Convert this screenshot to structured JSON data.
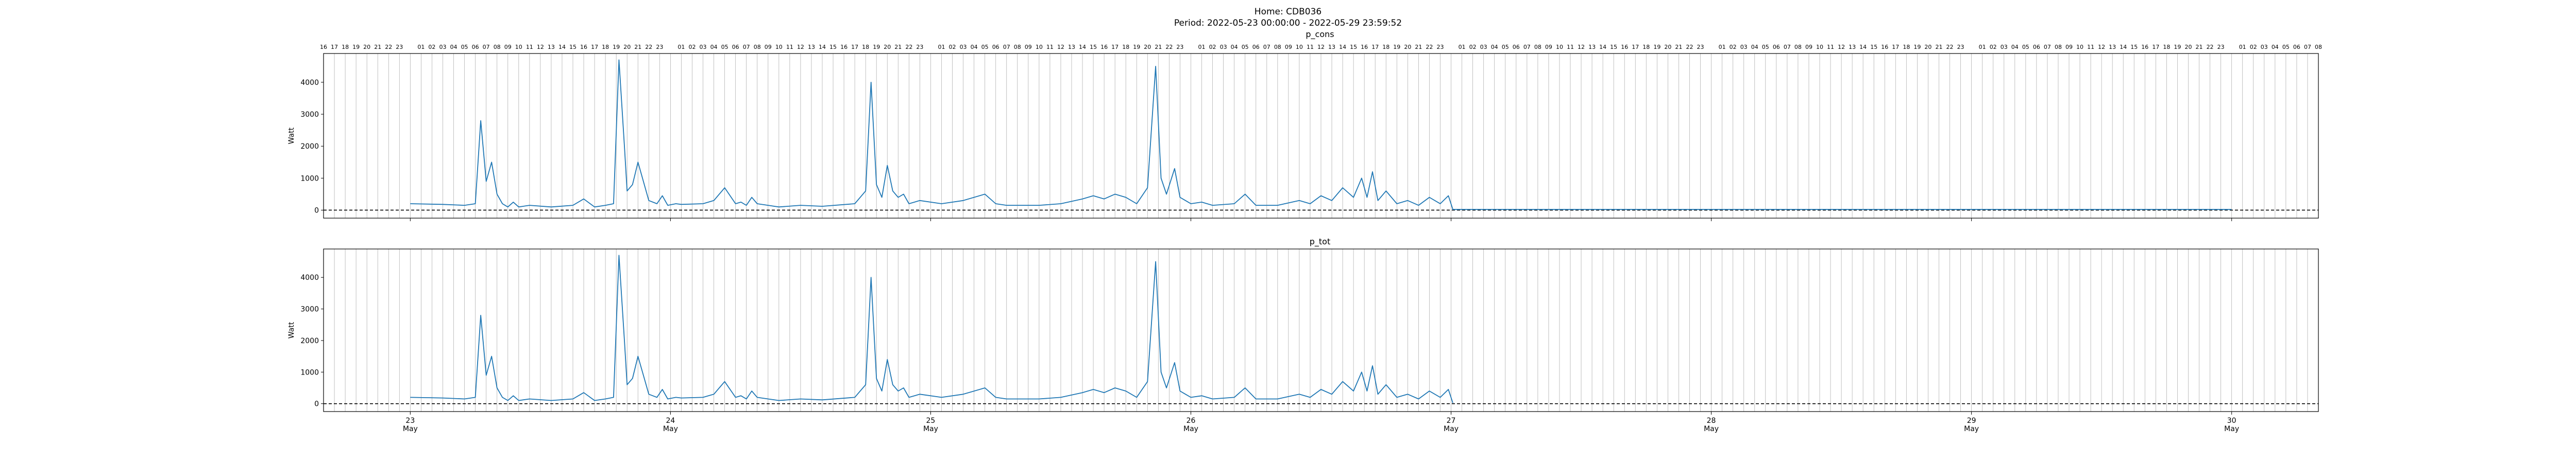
{
  "figure": {
    "title_line1": "Home: CDB036",
    "title_line2": "Period: 2022-05-23 00:00:00 - 2022-05-29 23:59:52"
  },
  "colors": {
    "line": "#1f77b4",
    "axes": "#000000",
    "grid": "#b0b0b0",
    "zero_line": "#000000"
  },
  "chart_data": [
    {
      "type": "line",
      "title": "p_cons",
      "xlabel": "",
      "ylabel": "Watt",
      "grid": "vertical hourly lines",
      "ylim": [
        -250,
        4900
      ],
      "yticks": [
        0,
        1000,
        2000,
        3000,
        4000
      ],
      "xlim": [
        "2022-05-22 16:00",
        "2022-05-30 08:00"
      ],
      "top_hour_labels": true,
      "x_day_ticks": [
        {
          "date": "2022-05-23",
          "day": "23",
          "month": "May"
        },
        {
          "date": "2022-05-24",
          "day": "24",
          "month": "May"
        },
        {
          "date": "2022-05-25",
          "day": "25",
          "month": "May"
        },
        {
          "date": "2022-05-26",
          "day": "26",
          "month": "May"
        },
        {
          "date": "2022-05-27",
          "day": "27",
          "month": "May"
        },
        {
          "date": "2022-05-28",
          "day": "28",
          "month": "May"
        },
        {
          "date": "2022-05-29",
          "day": "29",
          "month": "May"
        },
        {
          "date": "2022-05-30",
          "day": "30",
          "month": "May"
        }
      ],
      "zero_reference_line": "dashed at y=0",
      "series": [
        {
          "x": [
            "2022-05-23 00:00",
            "2022-05-23 03:00",
            "2022-05-23 05:00",
            "2022-05-23 06:00",
            "2022-05-23 06:30",
            "2022-05-23 07:00",
            "2022-05-23 07:30",
            "2022-05-23 08:00",
            "2022-05-23 08:30",
            "2022-05-23 09:00",
            "2022-05-23 09:30",
            "2022-05-23 10:00",
            "2022-05-23 11:00",
            "2022-05-23 13:00",
            "2022-05-23 15:00",
            "2022-05-23 16:00",
            "2022-05-23 17:00",
            "2022-05-23 18:00",
            "2022-05-23 18:45",
            "2022-05-23 19:15",
            "2022-05-23 19:45",
            "2022-05-23 20:00",
            "2022-05-23 20:30",
            "2022-05-23 21:00",
            "2022-05-23 21:30",
            "2022-05-23 22:00",
            "2022-05-23 22:45",
            "2022-05-23 23:15",
            "2022-05-23 23:45",
            "2022-05-24 00:30",
            "2022-05-24 01:00",
            "2022-05-24 03:00",
            "2022-05-24 04:00",
            "2022-05-24 05:00",
            "2022-05-24 06:00",
            "2022-05-24 06:30",
            "2022-05-24 07:00",
            "2022-05-24 07:30",
            "2022-05-24 08:00",
            "2022-05-24 09:00",
            "2022-05-24 10:00",
            "2022-05-24 12:00",
            "2022-05-24 14:00",
            "2022-05-24 17:00",
            "2022-05-24 18:00",
            "2022-05-24 18:30",
            "2022-05-24 19:00",
            "2022-05-24 19:30",
            "2022-05-24 20:00",
            "2022-05-24 20:30",
            "2022-05-24 21:00",
            "2022-05-24 21:30",
            "2022-05-24 22:00",
            "2022-05-24 23:00",
            "2022-05-25 01:00",
            "2022-05-25 03:00",
            "2022-05-25 05:00",
            "2022-05-25 06:00",
            "2022-05-25 07:00",
            "2022-05-25 08:00",
            "2022-05-25 10:00",
            "2022-05-25 12:00",
            "2022-05-25 14:00",
            "2022-05-25 15:00",
            "2022-05-25 16:00",
            "2022-05-25 17:00",
            "2022-05-25 18:00",
            "2022-05-25 19:00",
            "2022-05-25 20:00",
            "2022-05-25 20:45",
            "2022-05-25 21:15",
            "2022-05-25 21:45",
            "2022-05-25 22:30",
            "2022-05-25 23:00",
            "2022-05-25 23:30",
            "2022-05-26 00:00",
            "2022-05-26 01:00",
            "2022-05-26 02:00",
            "2022-05-26 04:00",
            "2022-05-26 05:00",
            "2022-05-26 06:00",
            "2022-05-26 08:00",
            "2022-05-26 10:00",
            "2022-05-26 11:00",
            "2022-05-26 12:00",
            "2022-05-26 13:00",
            "2022-05-26 14:00",
            "2022-05-26 15:00",
            "2022-05-26 15:45",
            "2022-05-26 16:15",
            "2022-05-26 16:45",
            "2022-05-26 17:15",
            "2022-05-26 18:00",
            "2022-05-26 19:00",
            "2022-05-26 20:00",
            "2022-05-26 21:00",
            "2022-05-26 22:00",
            "2022-05-26 23:00",
            "2022-05-26 23:45",
            "2022-05-27 00:10",
            "2022-05-27 01:00",
            "2022-05-29 23:59"
          ],
          "y": [
            200,
            180,
            150,
            200,
            2800,
            900,
            1500,
            500,
            200,
            100,
            250,
            100,
            150,
            100,
            150,
            350,
            100,
            150,
            200,
            4700,
            2000,
            600,
            800,
            1500,
            900,
            300,
            200,
            450,
            150,
            200,
            180,
            200,
            300,
            700,
            200,
            250,
            150,
            400,
            200,
            150,
            100,
            150,
            120,
            200,
            600,
            4000,
            800,
            400,
            1400,
            600,
            400,
            500,
            200,
            300,
            200,
            300,
            500,
            200,
            150,
            150,
            150,
            200,
            350,
            450,
            350,
            500,
            400,
            200,
            700,
            4500,
            1000,
            500,
            1300,
            400,
            300,
            200,
            250,
            150,
            200,
            500,
            150,
            150,
            300,
            200,
            450,
            300,
            700,
            400,
            1000,
            400,
            1200,
            300,
            600,
            200,
            300,
            150,
            400,
            200,
            450,
            20,
            20,
            20
          ]
        }
      ]
    },
    {
      "type": "line",
      "title": "p_tot",
      "xlabel": "",
      "ylabel": "Watt",
      "grid": "vertical hourly lines",
      "ylim": [
        -250,
        4900
      ],
      "yticks": [
        0,
        1000,
        2000,
        3000,
        4000
      ],
      "xlim": [
        "2022-05-22 16:00",
        "2022-05-30 08:00"
      ],
      "top_hour_labels": false,
      "x_day_ticks": [
        {
          "date": "2022-05-23",
          "day": "23",
          "month": "May"
        },
        {
          "date": "2022-05-24",
          "day": "24",
          "month": "May"
        },
        {
          "date": "2022-05-25",
          "day": "25",
          "month": "May"
        },
        {
          "date": "2022-05-26",
          "day": "26",
          "month": "May"
        },
        {
          "date": "2022-05-27",
          "day": "27",
          "month": "May"
        },
        {
          "date": "2022-05-28",
          "day": "28",
          "month": "May"
        },
        {
          "date": "2022-05-29",
          "day": "29",
          "month": "May"
        },
        {
          "date": "2022-05-30",
          "day": "30",
          "month": "May"
        }
      ],
      "zero_reference_line": "dashed at y=0",
      "series": [
        {
          "x": [
            "2022-05-23 00:00",
            "2022-05-23 03:00",
            "2022-05-23 05:00",
            "2022-05-23 06:00",
            "2022-05-23 06:30",
            "2022-05-23 07:00",
            "2022-05-23 07:30",
            "2022-05-23 08:00",
            "2022-05-23 08:30",
            "2022-05-23 09:00",
            "2022-05-23 09:30",
            "2022-05-23 10:00",
            "2022-05-23 11:00",
            "2022-05-23 13:00",
            "2022-05-23 15:00",
            "2022-05-23 16:00",
            "2022-05-23 17:00",
            "2022-05-23 18:00",
            "2022-05-23 18:45",
            "2022-05-23 19:15",
            "2022-05-23 19:45",
            "2022-05-23 20:00",
            "2022-05-23 20:30",
            "2022-05-23 21:00",
            "2022-05-23 21:30",
            "2022-05-23 22:00",
            "2022-05-23 22:45",
            "2022-05-23 23:15",
            "2022-05-23 23:45",
            "2022-05-24 00:30",
            "2022-05-24 01:00",
            "2022-05-24 03:00",
            "2022-05-24 04:00",
            "2022-05-24 05:00",
            "2022-05-24 06:00",
            "2022-05-24 06:30",
            "2022-05-24 07:00",
            "2022-05-24 07:30",
            "2022-05-24 08:00",
            "2022-05-24 09:00",
            "2022-05-24 10:00",
            "2022-05-24 12:00",
            "2022-05-24 14:00",
            "2022-05-24 17:00",
            "2022-05-24 18:00",
            "2022-05-24 18:30",
            "2022-05-24 19:00",
            "2022-05-24 19:30",
            "2022-05-24 20:00",
            "2022-05-24 20:30",
            "2022-05-24 21:00",
            "2022-05-24 21:30",
            "2022-05-24 22:00",
            "2022-05-24 23:00",
            "2022-05-25 01:00",
            "2022-05-25 03:00",
            "2022-05-25 05:00",
            "2022-05-25 06:00",
            "2022-05-25 07:00",
            "2022-05-25 08:00",
            "2022-05-25 10:00",
            "2022-05-25 12:00",
            "2022-05-25 14:00",
            "2022-05-25 15:00",
            "2022-05-25 16:00",
            "2022-05-25 17:00",
            "2022-05-25 18:00",
            "2022-05-25 19:00",
            "2022-05-25 20:00",
            "2022-05-25 20:45",
            "2022-05-25 21:15",
            "2022-05-25 21:45",
            "2022-05-25 22:30",
            "2022-05-25 23:00",
            "2022-05-25 23:30",
            "2022-05-26 00:00",
            "2022-05-26 01:00",
            "2022-05-26 02:00",
            "2022-05-26 04:00",
            "2022-05-26 05:00",
            "2022-05-26 06:00",
            "2022-05-26 08:00",
            "2022-05-26 10:00",
            "2022-05-26 11:00",
            "2022-05-26 12:00",
            "2022-05-26 13:00",
            "2022-05-26 14:00",
            "2022-05-26 15:00",
            "2022-05-26 15:45",
            "2022-05-26 16:15",
            "2022-05-26 16:45",
            "2022-05-26 17:15",
            "2022-05-26 18:00",
            "2022-05-26 19:00",
            "2022-05-26 20:00",
            "2022-05-26 21:00",
            "2022-05-26 22:00",
            "2022-05-26 23:00",
            "2022-05-26 23:45",
            "2022-05-27 00:10"
          ],
          "y": [
            200,
            180,
            150,
            200,
            2800,
            900,
            1500,
            500,
            200,
            100,
            250,
            100,
            150,
            100,
            150,
            350,
            100,
            150,
            200,
            4700,
            2000,
            600,
            800,
            1500,
            900,
            300,
            200,
            450,
            150,
            200,
            180,
            200,
            300,
            700,
            200,
            250,
            150,
            400,
            200,
            150,
            100,
            150,
            120,
            200,
            600,
            4000,
            800,
            400,
            1400,
            600,
            400,
            500,
            200,
            300,
            200,
            300,
            500,
            200,
            150,
            150,
            150,
            200,
            350,
            450,
            350,
            500,
            400,
            200,
            700,
            4500,
            1000,
            500,
            1300,
            400,
            300,
            200,
            250,
            150,
            200,
            500,
            150,
            150,
            300,
            200,
            450,
            300,
            700,
            400,
            1000,
            400,
            1200,
            300,
            600,
            200,
            300,
            150,
            400,
            200,
            450,
            20
          ]
        }
      ]
    }
  ]
}
